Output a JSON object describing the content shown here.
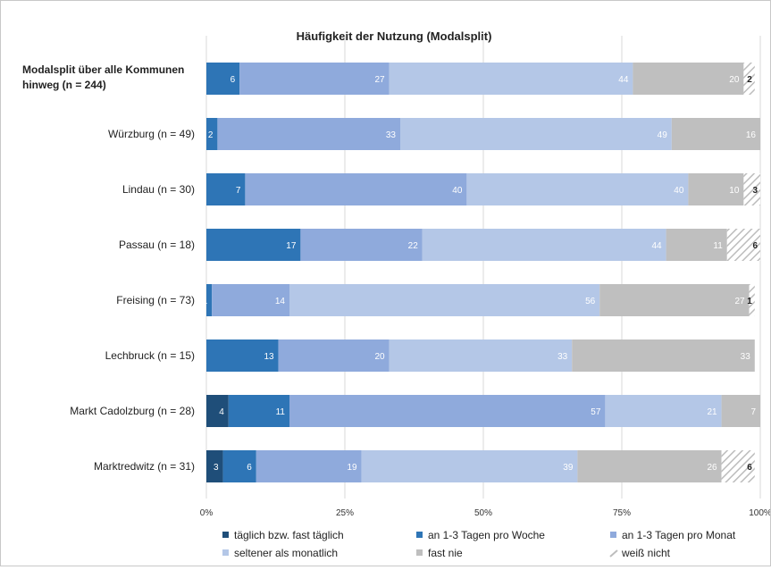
{
  "chart_data": {
    "type": "bar",
    "orientation": "horizontal",
    "stacked": true,
    "title": "Häufigkeit der Nutzung (Modalsplit)",
    "xlim": [
      0,
      100
    ],
    "x_ticks": [
      "0%",
      "25%",
      "50%",
      "75%",
      "100%"
    ],
    "grid": true,
    "legend_position": "bottom",
    "categories": [
      "Modalsplit über alle Kommunen hinweg (n = 244)",
      "Würzburg (n = 49)",
      "Lindau (n = 30)",
      "Passau (n = 18)",
      "Freising (n = 73)",
      "Lechbruck (n = 15)",
      "Markt Cadolzburg (n = 28)",
      "Marktredwitz (n = 31)"
    ],
    "category_lines": [
      [
        "Modalsplit über alle Kommunen",
        "hinweg (n = 244)"
      ],
      [
        "Würzburg (n = 49)"
      ],
      [
        "Lindau (n = 30)"
      ],
      [
        "Passau (n = 18)"
      ],
      [
        "Freising (n = 73)"
      ],
      [
        "Lechbruck (n = 15)"
      ],
      [
        "Markt Cadolzburg (n = 28)"
      ],
      [
        "Marktredwitz (n = 31)"
      ]
    ],
    "bold_categories": [
      0
    ],
    "series": [
      {
        "name": "täglich bzw. fast täglich",
        "color": "#1f4e79",
        "label_color": "#ffffff",
        "hatched": false,
        "values": [
          0,
          0,
          0,
          0,
          0,
          0,
          4,
          3
        ]
      },
      {
        "name": "an 1-3 Tagen pro Woche",
        "color": "#2e75b6",
        "label_color": "#ffffff",
        "hatched": false,
        "values": [
          6,
          2,
          7,
          17,
          1,
          13,
          11,
          6
        ]
      },
      {
        "name": "an 1-3 Tagen pro Monat",
        "color": "#8faadc",
        "label_color": "#ffffff",
        "hatched": false,
        "values": [
          27,
          33,
          40,
          22,
          14,
          20,
          57,
          19
        ]
      },
      {
        "name": "seltener als monatlich",
        "color": "#b4c7e7",
        "label_color": "#ffffff",
        "hatched": false,
        "values": [
          44,
          49,
          40,
          44,
          56,
          33,
          21,
          39
        ]
      },
      {
        "name": "fast nie",
        "color": "#bfbfbf",
        "label_color": "#ffffff",
        "hatched": false,
        "values": [
          20,
          16,
          10,
          11,
          27,
          33,
          7,
          26
        ]
      },
      {
        "name": "weiß nicht",
        "color": "#d9d9d9",
        "label_color": "#222222",
        "hatched": true,
        "values": [
          2,
          0,
          3,
          6,
          1,
          0,
          0,
          6
        ]
      }
    ]
  }
}
